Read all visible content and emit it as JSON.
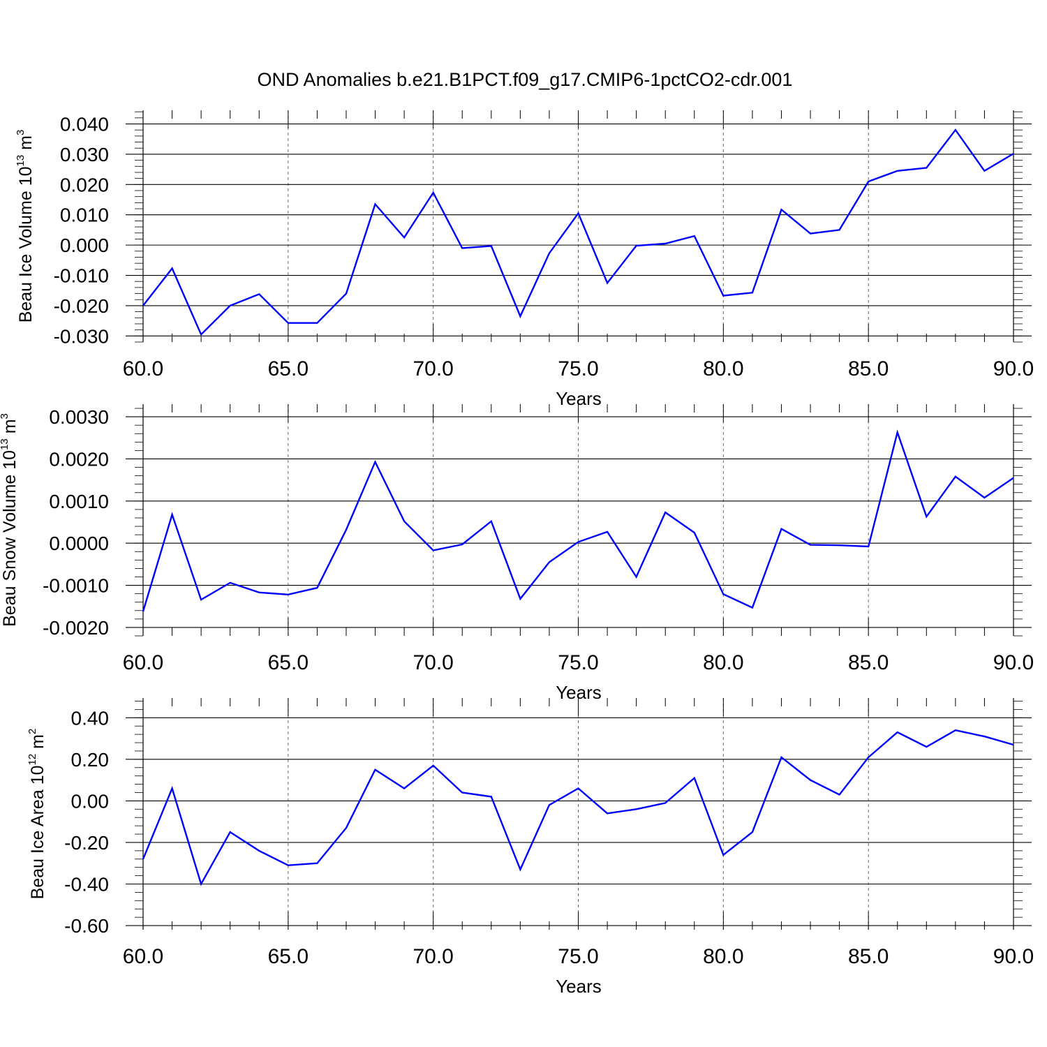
{
  "title": "OND Anomalies b.e21.B1PCT.f09_g17.CMIP6-1pctCO2-cdr.001",
  "line_color": "#0000ff",
  "chart_data": [
    {
      "type": "line",
      "ylabel": {
        "text": "Beau Ice Volume 10",
        "exp": "13",
        "unit": " m",
        "unit_exp": "3"
      },
      "xlabel": "Years",
      "xlim": [
        60,
        90
      ],
      "ylim": [
        -0.032,
        0.0445
      ],
      "x_ticks": [
        "60.0",
        "65.0",
        "70.0",
        "75.0",
        "80.0",
        "85.0",
        "90.0"
      ],
      "y_ticks": [
        "0.040",
        "0.030",
        "0.020",
        "0.010",
        "0.000",
        "-0.010",
        "-0.020",
        "-0.030"
      ],
      "y_tick_values": [
        0.04,
        0.03,
        0.02,
        0.01,
        0.0,
        -0.01,
        -0.02,
        -0.03
      ],
      "x": [
        60,
        61,
        62,
        63,
        64,
        65,
        66,
        67,
        68,
        69,
        70,
        71,
        72,
        73,
        74,
        75,
        76,
        77,
        78,
        79,
        80,
        81,
        82,
        83,
        84,
        85,
        86,
        87,
        88,
        89,
        90
      ],
      "y": [
        -0.02,
        -0.0077,
        -0.0295,
        -0.02,
        -0.0162,
        -0.0257,
        -0.0257,
        -0.016,
        0.0135,
        0.0025,
        0.0173,
        -0.001,
        -0.0003,
        -0.0235,
        -0.0027,
        0.0105,
        -0.0125,
        -0.0002,
        0.0005,
        0.003,
        -0.0167,
        -0.0157,
        0.0117,
        0.0038,
        0.005,
        0.021,
        0.0245,
        0.0255,
        0.038,
        0.0245,
        0.0302
      ]
    },
    {
      "type": "line",
      "ylabel": {
        "text": "Beau Snow Volume 10",
        "exp": "13",
        "unit": " m",
        "unit_exp": "3"
      },
      "xlabel": "Years",
      "xlim": [
        60,
        90
      ],
      "ylim": [
        -0.0022,
        0.0033
      ],
      "x_ticks": [
        "60.0",
        "65.0",
        "70.0",
        "75.0",
        "80.0",
        "85.0",
        "90.0"
      ],
      "y_ticks": [
        "0.0030",
        "0.0020",
        "0.0010",
        "0.0000",
        "-0.0010",
        "-0.0020"
      ],
      "y_tick_values": [
        0.003,
        0.002,
        0.001,
        0.0,
        -0.001,
        -0.002
      ],
      "x": [
        60,
        61,
        62,
        63,
        64,
        65,
        66,
        67,
        68,
        69,
        70,
        71,
        72,
        73,
        74,
        75,
        76,
        77,
        78,
        79,
        80,
        81,
        82,
        83,
        84,
        85,
        86,
        87,
        88,
        89,
        90
      ],
      "y": [
        -0.00162,
        0.00068,
        -0.00134,
        -0.00094,
        -0.00117,
        -0.00122,
        -0.00106,
        0.00032,
        0.00193,
        0.00052,
        -0.00017,
        -3e-05,
        0.00052,
        -0.00132,
        -0.00045,
        3e-05,
        0.00027,
        -0.0008,
        0.00073,
        0.00025,
        -0.00121,
        -0.00153,
        0.00034,
        -4e-05,
        -5e-05,
        -8e-05,
        0.00263,
        0.00063,
        0.00158,
        0.00108,
        0.00155
      ]
    },
    {
      "type": "line",
      "ylabel": {
        "text": "Beau Ice Area 10",
        "exp": "12",
        "unit": " m",
        "unit_exp": "2"
      },
      "xlabel": "Years",
      "xlim": [
        60,
        90
      ],
      "ylim": [
        -0.62,
        0.495
      ],
      "x_ticks": [
        "60.0",
        "65.0",
        "70.0",
        "75.0",
        "80.0",
        "85.0",
        "90.0"
      ],
      "y_ticks": [
        "0.40",
        "0.20",
        "0.00",
        "-0.20",
        "-0.40",
        "-0.60"
      ],
      "y_tick_values": [
        0.4,
        0.2,
        0.0,
        -0.2,
        -0.4,
        -0.6
      ],
      "x": [
        60,
        61,
        62,
        63,
        64,
        65,
        66,
        67,
        68,
        69,
        70,
        71,
        72,
        73,
        74,
        75,
        76,
        77,
        78,
        79,
        80,
        81,
        82,
        83,
        84,
        85,
        86,
        87,
        88,
        89,
        90
      ],
      "y": [
        -0.28,
        0.06,
        -0.4,
        -0.15,
        -0.24,
        -0.31,
        -0.3,
        -0.13,
        0.15,
        0.06,
        0.17,
        0.04,
        0.02,
        -0.33,
        -0.02,
        0.06,
        -0.06,
        -0.04,
        -0.01,
        0.11,
        -0.26,
        -0.15,
        0.21,
        0.1,
        0.03,
        0.21,
        0.33,
        0.26,
        0.34,
        0.31,
        0.27
      ]
    }
  ]
}
